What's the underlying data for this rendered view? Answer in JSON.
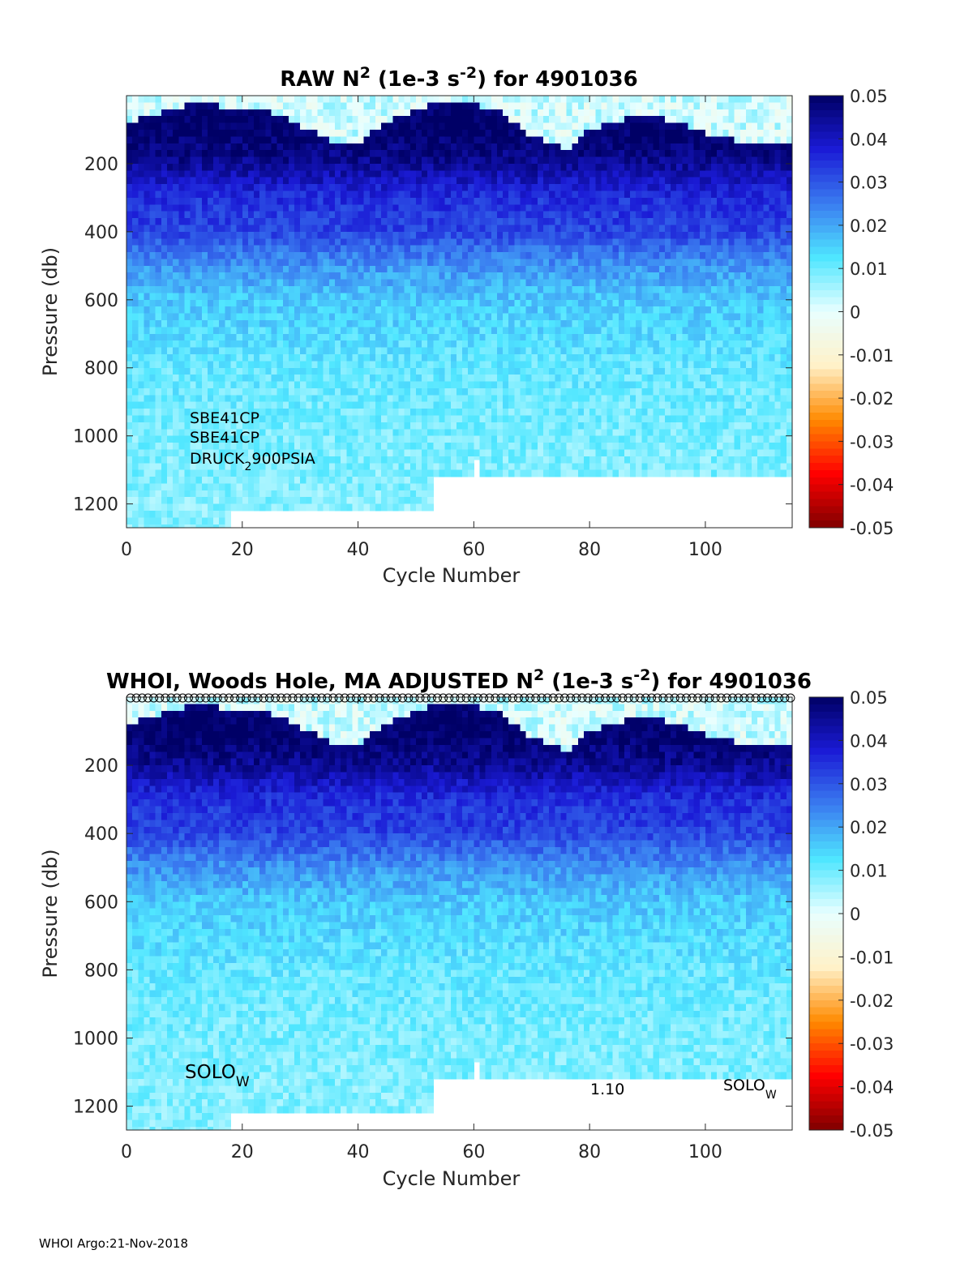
{
  "footer": "WHOI Argo:21-Nov-2018",
  "colorbar": {
    "ticks": [
      "0.05",
      "0.04",
      "0.03",
      "0.02",
      "0.01",
      "0",
      "-0.01",
      "-0.02",
      "-0.03",
      "-0.04",
      "-0.05"
    ],
    "range": [
      -0.05,
      0.05
    ],
    "colors": [
      "#7f0000",
      "#ff0000",
      "#ff8a00",
      "#fff1c8",
      "#e8ffff",
      "#4fe6ff",
      "#3a7cf0",
      "#1b1bd6",
      "#000066"
    ]
  },
  "chart_data": [
    {
      "type": "heatmap",
      "title": {
        "main": "RAW N",
        "sup1": "2",
        "mid": " (1e-3 s",
        "sup2": "-2",
        "end": ") for 4901036"
      },
      "xlabel": "Cycle Number",
      "ylabel": "Pressure (db)",
      "xlim": [
        0,
        115
      ],
      "ylim": [
        1270,
        0
      ],
      "xticks": [
        "0",
        "20",
        "40",
        "60",
        "80",
        "100"
      ],
      "yticks": [
        "200",
        "400",
        "600",
        "800",
        "1000",
        "1200"
      ],
      "annotations": [
        {
          "text": "SBE41CP"
        },
        {
          "text": "SBE41CP"
        },
        {
          "text": "DRUCK",
          "sub": "2",
          "rest": "900PSIA"
        }
      ],
      "max_pressure": [
        {
          "cycle_range": [
            0,
            18
          ],
          "pressure": 1270
        },
        {
          "cycle_range": [
            18,
            53
          ],
          "pressure": 1220
        },
        {
          "cycle_range": [
            53,
            60
          ],
          "pressure": 1120
        },
        {
          "cycle_range": [
            60,
            61
          ],
          "pressure": 1070
        },
        {
          "cycle_range": [
            61,
            115
          ],
          "pressure": 1120
        }
      ],
      "mixed_layer_depth": [
        {
          "cycle": 0,
          "pressure": 80
        },
        {
          "cycle": 12,
          "pressure": 20
        },
        {
          "cycle": 25,
          "pressure": 50
        },
        {
          "cycle": 35,
          "pressure": 130
        },
        {
          "cycle": 40,
          "pressure": 140
        },
        {
          "cycle": 45,
          "pressure": 80
        },
        {
          "cycle": 55,
          "pressure": 10
        },
        {
          "cycle": 64,
          "pressure": 40
        },
        {
          "cycle": 70,
          "pressure": 120
        },
        {
          "cycle": 76,
          "pressure": 160
        },
        {
          "cycle": 80,
          "pressure": 100
        },
        {
          "cycle": 90,
          "pressure": 50
        },
        {
          "cycle": 100,
          "pressure": 110
        },
        {
          "cycle": 108,
          "pressure": 145
        },
        {
          "cycle": 115,
          "pressure": 130
        }
      ],
      "value_by_pressure": [
        {
          "pressure": 100,
          "value": 0.05
        },
        {
          "pressure": 200,
          "value": 0.045
        },
        {
          "pressure": 300,
          "value": 0.035
        },
        {
          "pressure": 400,
          "value": 0.032
        },
        {
          "pressure": 500,
          "value": 0.022
        },
        {
          "pressure": 600,
          "value": 0.016
        },
        {
          "pressure": 800,
          "value": 0.011
        },
        {
          "pressure": 1000,
          "value": 0.009
        },
        {
          "pressure": 1200,
          "value": 0.008
        }
      ]
    },
    {
      "type": "heatmap",
      "title": {
        "main": "WHOI, Woods Hole, MA  ADJUSTED N",
        "sup1": "2",
        "mid": " (1e-3 s",
        "sup2": "-2",
        "end": ") for 4901036"
      },
      "xlabel": "Cycle Number",
      "ylabel": "Pressure (db)",
      "xlim": [
        0,
        115
      ],
      "ylim": [
        1270,
        0
      ],
      "xticks": [
        "0",
        "20",
        "40",
        "60",
        "80",
        "100"
      ],
      "yticks": [
        "200",
        "400",
        "600",
        "800",
        "1000",
        "1200"
      ],
      "annotations": [
        {
          "text": "SOLO",
          "sub": "W"
        },
        {
          "text": "1.10"
        },
        {
          "text": "SOLO",
          "sub": "W"
        }
      ],
      "qc_markers": "open circles along top axis, one per cycle",
      "max_pressure": [
        {
          "cycle_range": [
            0,
            18
          ],
          "pressure": 1270
        },
        {
          "cycle_range": [
            18,
            53
          ],
          "pressure": 1220
        },
        {
          "cycle_range": [
            53,
            60
          ],
          "pressure": 1120
        },
        {
          "cycle_range": [
            60,
            61
          ],
          "pressure": 1070
        },
        {
          "cycle_range": [
            61,
            115
          ],
          "pressure": 1120
        }
      ],
      "mixed_layer_depth": [
        {
          "cycle": 0,
          "pressure": 80
        },
        {
          "cycle": 12,
          "pressure": 20
        },
        {
          "cycle": 25,
          "pressure": 50
        },
        {
          "cycle": 35,
          "pressure": 130
        },
        {
          "cycle": 40,
          "pressure": 140
        },
        {
          "cycle": 45,
          "pressure": 80
        },
        {
          "cycle": 55,
          "pressure": 10
        },
        {
          "cycle": 64,
          "pressure": 40
        },
        {
          "cycle": 70,
          "pressure": 120
        },
        {
          "cycle": 76,
          "pressure": 160
        },
        {
          "cycle": 80,
          "pressure": 100
        },
        {
          "cycle": 90,
          "pressure": 50
        },
        {
          "cycle": 100,
          "pressure": 110
        },
        {
          "cycle": 108,
          "pressure": 145
        },
        {
          "cycle": 115,
          "pressure": 130
        }
      ],
      "value_by_pressure": [
        {
          "pressure": 100,
          "value": 0.05
        },
        {
          "pressure": 200,
          "value": 0.045
        },
        {
          "pressure": 300,
          "value": 0.035
        },
        {
          "pressure": 400,
          "value": 0.032
        },
        {
          "pressure": 500,
          "value": 0.022
        },
        {
          "pressure": 600,
          "value": 0.016
        },
        {
          "pressure": 800,
          "value": 0.011
        },
        {
          "pressure": 1000,
          "value": 0.009
        },
        {
          "pressure": 1200,
          "value": 0.008
        }
      ]
    }
  ]
}
